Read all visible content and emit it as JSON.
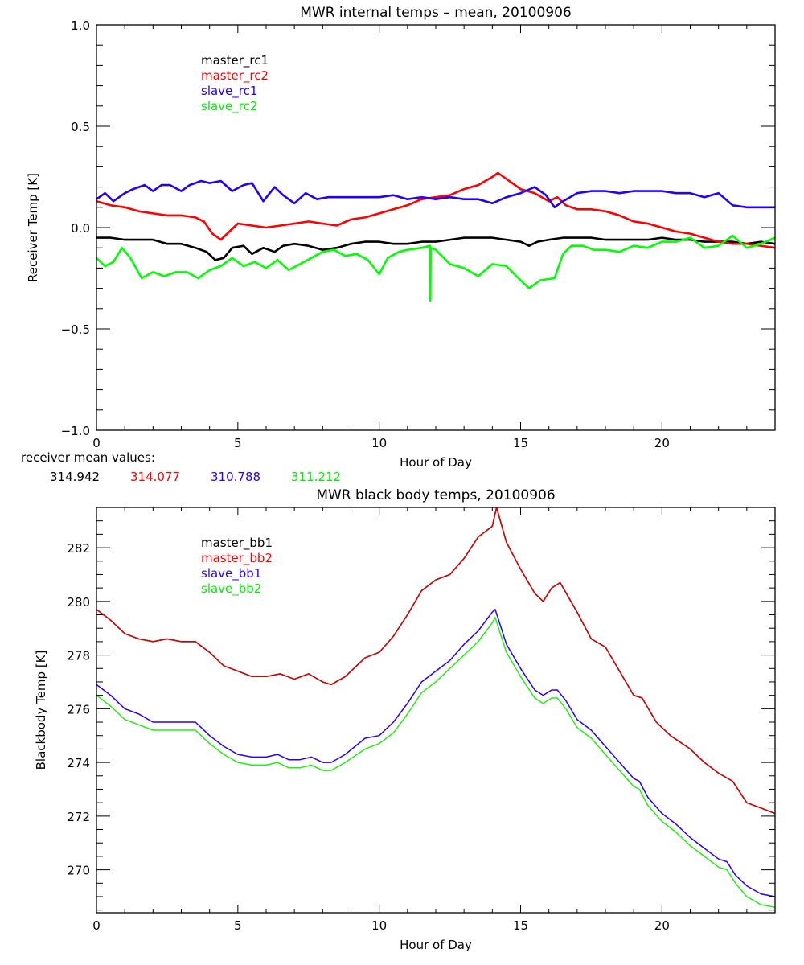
{
  "chart_data": [
    {
      "type": "line",
      "title": "MWR internal temps – mean, 20100906",
      "xlabel": "Hour of Day",
      "ylabel": "Receiver Temp [K]",
      "xlim": [
        0,
        24
      ],
      "ylim": [
        -1.0,
        1.0
      ],
      "xticks": [
        0,
        5,
        10,
        15,
        20
      ],
      "xtick_labels": [
        "0",
        "5",
        "10",
        "15",
        "20"
      ],
      "yticks": [
        -1.0,
        -0.5,
        0.0,
        0.5,
        1.0
      ],
      "ytick_labels": [
        "−1.0",
        "−0.5",
        "0.0",
        "0.5",
        "1.0"
      ],
      "x_minor_step": 1,
      "y_minor_step": 0.1,
      "grid": false,
      "legend_position": "top-left",
      "legend": [
        "master_rc1",
        "master_rc2",
        "slave_rc1",
        "slave_rc2"
      ],
      "footnote_label": "receiver mean values:",
      "footnote_values": [
        "314.942",
        "314.077",
        "310.788",
        "311.212"
      ],
      "series": [
        {
          "name": "master_rc1",
          "color": "#000000",
          "x": [
            0,
            0.5,
            1,
            1.5,
            2,
            2.5,
            3,
            3.5,
            3.9,
            4.2,
            4.5,
            4.8,
            5.2,
            5.5,
            5.9,
            6.3,
            6.6,
            7.0,
            7.5,
            8.0,
            8.5,
            9.0,
            9.5,
            10,
            10.5,
            11,
            11.5,
            12,
            12.5,
            13,
            13.5,
            14,
            14.5,
            15,
            15.3,
            15.6,
            16,
            16.5,
            17,
            17.5,
            18,
            18.5,
            19,
            19.5,
            20,
            20.5,
            21,
            21.5,
            22,
            22.5,
            23,
            23.5,
            24
          ],
          "y": [
            -0.05,
            -0.05,
            -0.06,
            -0.06,
            -0.06,
            -0.08,
            -0.08,
            -0.1,
            -0.12,
            -0.16,
            -0.15,
            -0.1,
            -0.09,
            -0.13,
            -0.1,
            -0.12,
            -0.09,
            -0.08,
            -0.09,
            -0.11,
            -0.1,
            -0.08,
            -0.07,
            -0.07,
            -0.08,
            -0.08,
            -0.07,
            -0.07,
            -0.06,
            -0.05,
            -0.05,
            -0.05,
            -0.06,
            -0.07,
            -0.09,
            -0.07,
            -0.06,
            -0.05,
            -0.05,
            -0.05,
            -0.06,
            -0.06,
            -0.06,
            -0.06,
            -0.05,
            -0.06,
            -0.06,
            -0.07,
            -0.07,
            -0.07,
            -0.08,
            -0.07,
            -0.08
          ]
        },
        {
          "name": "master_rc2",
          "color": "#ff0000",
          "x": [
            0,
            0.5,
            1,
            1.5,
            2,
            2.5,
            3,
            3.5,
            3.8,
            4.1,
            4.4,
            4.7,
            5.0,
            5.5,
            6.0,
            6.5,
            7.0,
            7.5,
            8.0,
            8.5,
            9.0,
            9.5,
            10,
            10.5,
            11,
            11.5,
            12,
            12.5,
            13,
            13.5,
            14,
            14.2,
            14.5,
            15,
            15.5,
            16,
            16.3,
            16.6,
            17,
            17.5,
            18,
            18.5,
            19,
            19.5,
            20,
            20.5,
            21,
            21.5,
            22,
            22.5,
            23,
            23.5,
            24
          ],
          "y": [
            0.13,
            0.11,
            0.1,
            0.08,
            0.07,
            0.06,
            0.06,
            0.05,
            0.03,
            -0.03,
            -0.06,
            -0.02,
            0.02,
            0.01,
            0.0,
            0.01,
            0.02,
            0.03,
            0.02,
            0.01,
            0.04,
            0.05,
            0.07,
            0.09,
            0.11,
            0.14,
            0.15,
            0.16,
            0.19,
            0.21,
            0.25,
            0.27,
            0.24,
            0.19,
            0.17,
            0.13,
            0.15,
            0.11,
            0.09,
            0.09,
            0.08,
            0.06,
            0.03,
            0.02,
            0.0,
            -0.02,
            -0.03,
            -0.05,
            -0.07,
            -0.08,
            -0.08,
            -0.09,
            -0.1
          ]
        },
        {
          "name": "slave_rc1",
          "color": "#2200ff",
          "x": [
            0,
            0.3,
            0.6,
            1.0,
            1.3,
            1.7,
            2.0,
            2.3,
            2.6,
            3.0,
            3.3,
            3.7,
            4.0,
            4.4,
            4.8,
            5.2,
            5.5,
            5.9,
            6.3,
            6.6,
            7.0,
            7.4,
            7.8,
            8.2,
            9.0,
            10.0,
            10.5,
            11,
            11.5,
            12,
            12.5,
            13,
            13.5,
            14,
            14.5,
            15,
            15.5,
            15.9,
            16.2,
            16.5,
            17,
            17.5,
            18,
            18.5,
            19,
            19.5,
            20,
            20.5,
            21,
            21.5,
            22,
            22.5,
            23,
            23.5,
            24
          ],
          "y": [
            0.14,
            0.17,
            0.13,
            0.17,
            0.19,
            0.21,
            0.18,
            0.21,
            0.21,
            0.18,
            0.21,
            0.23,
            0.22,
            0.23,
            0.18,
            0.21,
            0.22,
            0.13,
            0.2,
            0.16,
            0.12,
            0.17,
            0.14,
            0.15,
            0.15,
            0.15,
            0.16,
            0.14,
            0.15,
            0.14,
            0.15,
            0.14,
            0.14,
            0.12,
            0.15,
            0.17,
            0.2,
            0.16,
            0.1,
            0.13,
            0.17,
            0.18,
            0.18,
            0.17,
            0.18,
            0.18,
            0.18,
            0.17,
            0.17,
            0.15,
            0.17,
            0.11,
            0.1,
            0.1,
            0.1
          ]
        },
        {
          "name": "slave_rc2",
          "color": "#00ff00",
          "x": [
            0,
            0.3,
            0.6,
            0.9,
            1.2,
            1.6,
            2.0,
            2.4,
            2.8,
            3.2,
            3.6,
            4.0,
            4.4,
            4.8,
            5.2,
            5.6,
            6.0,
            6.4,
            6.8,
            7.2,
            7.6,
            8.0,
            8.4,
            8.8,
            9.2,
            9.6,
            10.0,
            10.3,
            10.7,
            11.0,
            11.5,
            11.8,
            11.81,
            11.82,
            12.0,
            12.5,
            13.0,
            13.5,
            14.0,
            14.5,
            15.0,
            15.3,
            15.7,
            16.2,
            16.5,
            16.8,
            17.2,
            17.6,
            18,
            18.5,
            19,
            19.5,
            20,
            20.5,
            21,
            21.5,
            22,
            22.5,
            23,
            23.5,
            24
          ],
          "y": [
            -0.15,
            -0.19,
            -0.17,
            -0.1,
            -0.15,
            -0.25,
            -0.22,
            -0.24,
            -0.22,
            -0.22,
            -0.25,
            -0.21,
            -0.19,
            -0.15,
            -0.19,
            -0.17,
            -0.2,
            -0.16,
            -0.21,
            -0.18,
            -0.15,
            -0.12,
            -0.11,
            -0.14,
            -0.13,
            -0.16,
            -0.23,
            -0.15,
            -0.12,
            -0.11,
            -0.1,
            -0.09,
            -0.36,
            -0.1,
            -0.11,
            -0.18,
            -0.2,
            -0.24,
            -0.18,
            -0.19,
            -0.26,
            -0.3,
            -0.26,
            -0.25,
            -0.13,
            -0.09,
            -0.09,
            -0.11,
            -0.11,
            -0.12,
            -0.09,
            -0.1,
            -0.07,
            -0.07,
            -0.05,
            -0.1,
            -0.09,
            -0.04,
            -0.1,
            -0.08,
            -0.05
          ]
        }
      ]
    },
    {
      "type": "line",
      "title": "MWR black body temps, 20100906",
      "xlabel": "Hour of Day",
      "ylabel": "Blackbody Temp [K]",
      "xlim": [
        0,
        24
      ],
      "ylim": [
        268.4,
        283.5
      ],
      "xticks": [
        0,
        5,
        10,
        15,
        20
      ],
      "xtick_labels": [
        "0",
        "5",
        "10",
        "15",
        "20"
      ],
      "yticks": [
        270,
        272,
        274,
        276,
        278,
        280,
        282
      ],
      "ytick_labels": [
        "270",
        "272",
        "274",
        "276",
        "278",
        "280",
        "282"
      ],
      "x_minor_step": 1,
      "y_minor_step": 0.5,
      "grid": false,
      "legend_position": "top-left",
      "legend": [
        "master_bb1",
        "master_bb2",
        "slave_bb1",
        "slave_bb2"
      ],
      "series": [
        {
          "name": "master_bb1",
          "color": "#000000",
          "x": [
            0,
            0.5,
            1,
            1.5,
            2,
            2.5,
            3,
            3.5,
            4,
            4.5,
            5,
            5.5,
            6,
            6.5,
            7,
            7.5,
            8,
            8.3,
            8.8,
            9.5,
            10,
            10.5,
            11,
            11.5,
            12,
            12.5,
            13,
            13.5,
            14,
            14.15,
            14.5,
            15,
            15.5,
            15.8,
            16.1,
            16.4,
            17,
            17.5,
            18,
            18.5,
            19,
            19.3,
            19.8,
            20.3,
            21,
            21.5,
            22,
            22.5,
            23,
            23.5,
            24
          ],
          "y": [
            279.7,
            279.3,
            278.8,
            278.6,
            278.5,
            278.6,
            278.5,
            278.5,
            278.1,
            277.6,
            277.4,
            277.2,
            277.2,
            277.3,
            277.1,
            277.3,
            277.0,
            276.9,
            277.2,
            277.9,
            278.1,
            278.7,
            279.5,
            280.4,
            280.8,
            281.0,
            281.6,
            282.4,
            282.8,
            283.5,
            282.2,
            281.2,
            280.3,
            280.0,
            280.5,
            280.7,
            279.6,
            278.6,
            278.3,
            277.4,
            276.5,
            276.4,
            275.5,
            275.0,
            274.5,
            274.0,
            273.6,
            273.3,
            272.5,
            272.3,
            272.1
          ]
        },
        {
          "name": "master_bb2",
          "color": "#dd0000",
          "x": [
            0,
            0.5,
            1,
            1.5,
            2,
            2.5,
            3,
            3.5,
            4,
            4.5,
            5,
            5.5,
            6,
            6.5,
            7,
            7.5,
            8,
            8.3,
            8.8,
            9.5,
            10,
            10.5,
            11,
            11.5,
            12,
            12.5,
            13,
            13.5,
            14,
            14.15,
            14.5,
            15,
            15.5,
            15.8,
            16.1,
            16.4,
            17,
            17.5,
            18,
            18.5,
            19,
            19.3,
            19.8,
            20.3,
            21,
            21.5,
            22,
            22.5,
            23,
            23.5,
            24
          ],
          "y": [
            279.7,
            279.3,
            278.8,
            278.6,
            278.5,
            278.6,
            278.5,
            278.5,
            278.1,
            277.6,
            277.4,
            277.2,
            277.2,
            277.3,
            277.1,
            277.3,
            277.0,
            276.9,
            277.2,
            277.9,
            278.1,
            278.7,
            279.5,
            280.4,
            280.8,
            281.0,
            281.6,
            282.4,
            282.8,
            283.5,
            282.2,
            281.2,
            280.3,
            280.0,
            280.5,
            280.7,
            279.6,
            278.6,
            278.3,
            277.4,
            276.5,
            276.4,
            275.5,
            275.0,
            274.5,
            274.0,
            273.6,
            273.3,
            272.5,
            272.3,
            272.1
          ]
        },
        {
          "name": "slave_bb1",
          "color": "#2200ff",
          "x": [
            0,
            0.5,
            1,
            1.5,
            2,
            2.5,
            3,
            3.5,
            4,
            4.5,
            5,
            5.5,
            6,
            6.4,
            6.8,
            7.2,
            7.6,
            8.0,
            8.3,
            8.8,
            9.5,
            10,
            10.5,
            11,
            11.5,
            12,
            12.5,
            13,
            13.5,
            14,
            14.1,
            14.5,
            15,
            15.5,
            15.8,
            16.1,
            16.3,
            16.6,
            17,
            17.5,
            18,
            18.5,
            19,
            19.2,
            19.5,
            20,
            20.5,
            21,
            21.5,
            22,
            22.3,
            22.6,
            23,
            23.5,
            24
          ],
          "y": [
            276.9,
            276.5,
            276.0,
            275.8,
            275.5,
            275.5,
            275.5,
            275.5,
            275.0,
            274.6,
            274.3,
            274.2,
            274.2,
            274.3,
            274.1,
            274.1,
            274.2,
            274.0,
            274.0,
            274.3,
            274.9,
            275.0,
            275.5,
            276.2,
            277.0,
            277.4,
            277.8,
            278.4,
            278.9,
            279.6,
            279.7,
            278.4,
            277.5,
            276.7,
            276.5,
            276.7,
            276.7,
            276.3,
            275.6,
            275.2,
            274.6,
            274.0,
            273.4,
            273.3,
            272.7,
            272.1,
            271.7,
            271.2,
            270.8,
            270.4,
            270.3,
            269.8,
            269.4,
            269.1,
            269.0
          ]
        },
        {
          "name": "slave_bb2",
          "color": "#22ee11",
          "x": [
            0,
            0.5,
            1,
            1.5,
            2,
            2.5,
            3,
            3.5,
            4,
            4.5,
            5,
            5.5,
            6,
            6.4,
            6.8,
            7.2,
            7.6,
            8.0,
            8.3,
            8.8,
            9.5,
            10,
            10.5,
            11,
            11.5,
            12,
            12.5,
            13,
            13.5,
            14,
            14.1,
            14.5,
            15,
            15.5,
            15.8,
            16.1,
            16.3,
            16.6,
            17,
            17.5,
            18,
            18.5,
            19,
            19.2,
            19.5,
            20,
            20.5,
            21,
            21.5,
            22,
            22.3,
            22.6,
            23,
            23.5,
            24
          ],
          "y": [
            276.5,
            276.1,
            275.6,
            275.4,
            275.2,
            275.2,
            275.2,
            275.2,
            274.7,
            274.3,
            274.0,
            273.9,
            273.9,
            274.0,
            273.8,
            273.8,
            273.9,
            273.7,
            273.7,
            274.0,
            274.5,
            274.7,
            275.1,
            275.8,
            276.6,
            277.0,
            277.5,
            278.0,
            278.5,
            279.2,
            279.4,
            278.1,
            277.2,
            276.4,
            276.2,
            276.4,
            276.4,
            276.0,
            275.3,
            274.9,
            274.3,
            273.7,
            273.1,
            273.0,
            272.4,
            271.8,
            271.4,
            270.9,
            270.5,
            270.1,
            270.0,
            269.5,
            269.0,
            268.7,
            268.6
          ]
        }
      ]
    }
  ]
}
